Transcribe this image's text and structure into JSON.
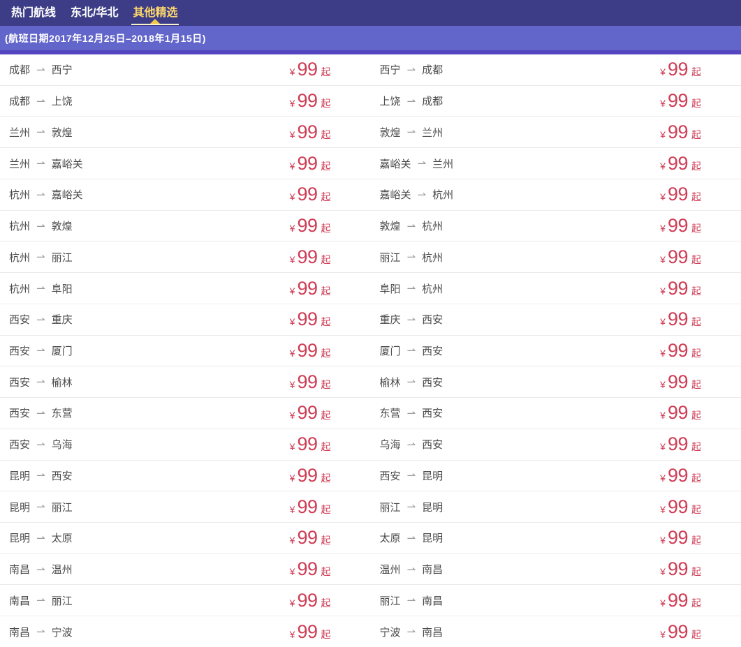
{
  "tabs": [
    {
      "label": "热门航线",
      "active": false
    },
    {
      "label": "东北/华北",
      "active": false
    },
    {
      "label": "其他精选",
      "active": true
    }
  ],
  "banner": {
    "text": "(航班日期2017年12月25日–2018年1月15日)"
  },
  "fares": {
    "arrow": "⇀",
    "currency": "¥",
    "suffix": "起",
    "rows": [
      {
        "left": {
          "from": "成都",
          "to": "西宁",
          "price": "99"
        },
        "right": {
          "from": "西宁",
          "to": "成都",
          "price": "99"
        }
      },
      {
        "left": {
          "from": "成都",
          "to": "上饶",
          "price": "99"
        },
        "right": {
          "from": "上饶",
          "to": "成都",
          "price": "99"
        }
      },
      {
        "left": {
          "from": "兰州",
          "to": "敦煌",
          "price": "99"
        },
        "right": {
          "from": "敦煌",
          "to": "兰州",
          "price": "99"
        }
      },
      {
        "left": {
          "from": "兰州",
          "to": "嘉峪关",
          "price": "99"
        },
        "right": {
          "from": "嘉峪关",
          "to": "兰州",
          "price": "99"
        }
      },
      {
        "left": {
          "from": "杭州",
          "to": "嘉峪关",
          "price": "99"
        },
        "right": {
          "from": "嘉峪关",
          "to": "杭州",
          "price": "99"
        }
      },
      {
        "left": {
          "from": "杭州",
          "to": "敦煌",
          "price": "99"
        },
        "right": {
          "from": "敦煌",
          "to": "杭州",
          "price": "99"
        }
      },
      {
        "left": {
          "from": "杭州",
          "to": "丽江",
          "price": "99"
        },
        "right": {
          "from": "丽江",
          "to": "杭州",
          "price": "99"
        }
      },
      {
        "left": {
          "from": "杭州",
          "to": "阜阳",
          "price": "99"
        },
        "right": {
          "from": "阜阳",
          "to": "杭州",
          "price": "99"
        }
      },
      {
        "left": {
          "from": "西安",
          "to": "重庆",
          "price": "99"
        },
        "right": {
          "from": "重庆",
          "to": "西安",
          "price": "99"
        }
      },
      {
        "left": {
          "from": "西安",
          "to": "厦门",
          "price": "99"
        },
        "right": {
          "from": "厦门",
          "to": "西安",
          "price": "99"
        }
      },
      {
        "left": {
          "from": "西安",
          "to": "榆林",
          "price": "99"
        },
        "right": {
          "from": "榆林",
          "to": "西安",
          "price": "99"
        }
      },
      {
        "left": {
          "from": "西安",
          "to": "东营",
          "price": "99"
        },
        "right": {
          "from": "东营",
          "to": "西安",
          "price": "99"
        }
      },
      {
        "left": {
          "from": "西安",
          "to": "乌海",
          "price": "99"
        },
        "right": {
          "from": "乌海",
          "to": "西安",
          "price": "99"
        }
      },
      {
        "left": {
          "from": "昆明",
          "to": "西安",
          "price": "99"
        },
        "right": {
          "from": "西安",
          "to": "昆明",
          "price": "99"
        }
      },
      {
        "left": {
          "from": "昆明",
          "to": "丽江",
          "price": "99"
        },
        "right": {
          "from": "丽江",
          "to": "昆明",
          "price": "99"
        }
      },
      {
        "left": {
          "from": "昆明",
          "to": "太原",
          "price": "99"
        },
        "right": {
          "from": "太原",
          "to": "昆明",
          "price": "99"
        }
      },
      {
        "left": {
          "from": "南昌",
          "to": "温州",
          "price": "99"
        },
        "right": {
          "from": "温州",
          "to": "南昌",
          "price": "99"
        }
      },
      {
        "left": {
          "from": "南昌",
          "to": "丽江",
          "price": "99"
        },
        "right": {
          "from": "丽江",
          "to": "南昌",
          "price": "99"
        }
      },
      {
        "left": {
          "from": "南昌",
          "to": "宁波",
          "price": "99"
        },
        "right": {
          "from": "宁波",
          "to": "南昌",
          "price": "99"
        }
      }
    ]
  },
  "colors": {
    "tab_bar_bg": "#3c3c87",
    "active_tab_text": "#ffd96b",
    "tab_caret": "#f2c74b",
    "banner_bg": "#6265ca",
    "divider": "#5346c0",
    "price_red": "#ce3d55",
    "route_text": "#4b4b4b"
  }
}
